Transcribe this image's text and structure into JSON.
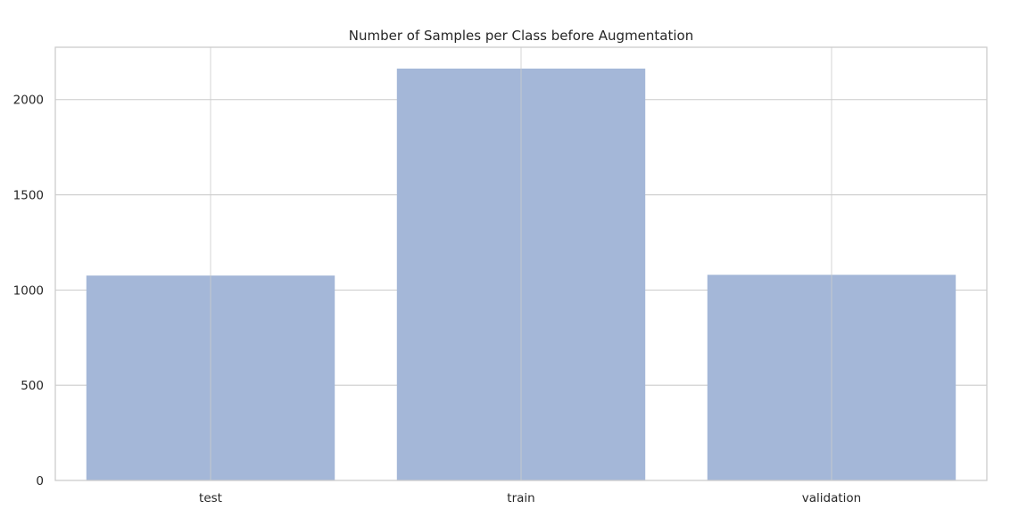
{
  "chart_data": {
    "type": "bar",
    "title": "Number of Samples per Class before Augmentation",
    "xlabel": "",
    "ylabel": "",
    "categories": [
      "test",
      "train",
      "validation"
    ],
    "values": [
      1076,
      2163,
      1080
    ],
    "ylim": [
      0,
      2275
    ],
    "yticks": [
      0,
      500,
      1000,
      1500,
      2000
    ],
    "grid": true,
    "legend": "none",
    "colors": {
      "bar": "#a4b7d8",
      "grid": "#cccccc",
      "axes": "#cccccc",
      "text": "#262626"
    }
  }
}
